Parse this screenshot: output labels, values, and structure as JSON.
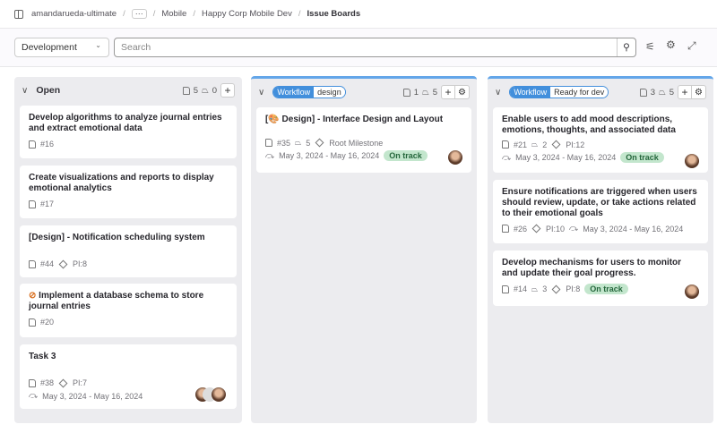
{
  "breadcrumb": [
    "amandarueda-ultimate",
    "Mobile",
    "Happy Corp Mobile Dev",
    "Issue Boards"
  ],
  "filter": {
    "board": "Development",
    "search_placeholder": "Search"
  },
  "columns": [
    {
      "title": "Open",
      "issues": "5",
      "weight": "0",
      "cards": [
        {
          "title": "Develop algorithms to analyze journal entries and extract emotional data",
          "id": "#16"
        },
        {
          "title": "Create visualizations and reports to display emotional analytics",
          "id": "#17"
        },
        {
          "title": "[Design] - Notification scheduling system",
          "id": "#44",
          "milestone": "PI:8"
        },
        {
          "title": "Implement a database schema to store journal entries",
          "id": "#20",
          "confidential": true
        },
        {
          "title": "Task 3",
          "id": "#38",
          "milestone": "PI:7",
          "dates": "May 3, 2024 - May 16, 2024"
        }
      ]
    },
    {
      "label_key": "Workflow",
      "label_value": "design",
      "issues": "1",
      "weight": "5",
      "color": "#428fdc",
      "cards": [
        {
          "title": "[🎨 Design] - Interface Design and Layout",
          "id": "#35",
          "weight": "5",
          "milestone": "Root Milestone",
          "dates": "May 3, 2024 - May 16, 2024",
          "status": "On track"
        }
      ]
    },
    {
      "label_key": "Workflow",
      "label_value": "Ready for dev",
      "issues": "3",
      "weight": "5",
      "color": "#428fdc",
      "cards": [
        {
          "title": "Enable users to add mood descriptions, emotions, thoughts, and associated data",
          "id": "#21",
          "weight": "2",
          "milestone": "PI:12",
          "dates": "May 3, 2024 - May 16, 2024",
          "status": "On track"
        },
        {
          "title": "Ensure notifications are triggered when users should review, update, or take actions related to their emotional goals",
          "id": "#26",
          "milestone": "PI:10",
          "dates": "May 3, 2024 - May 16, 2024"
        },
        {
          "title": "Develop mechanisms for users to monitor and update their goal progress.",
          "id": "#14",
          "weight": "3",
          "milestone": "PI:8",
          "status": "On track"
        }
      ]
    }
  ]
}
